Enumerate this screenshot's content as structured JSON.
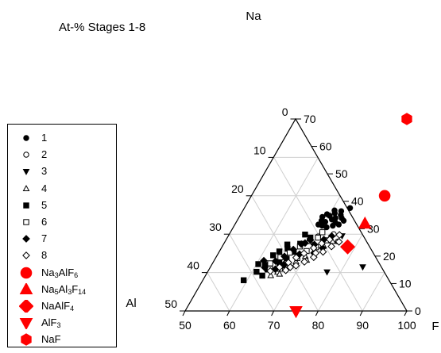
{
  "chart_data": {
    "type": "scatter",
    "subtype": "ternary",
    "title": "At-% Stages 1-8",
    "axes": {
      "top": "Na",
      "left": "Al",
      "right": "F",
      "bottom_ticks": [
        "50",
        "60",
        "70",
        "80",
        "90",
        "100"
      ],
      "left_ticks": [
        "0",
        "10",
        "20",
        "30",
        "40",
        "50"
      ],
      "right_ticks": [
        "0",
        "10",
        "20",
        "30",
        "40",
        "50",
        "60",
        "70"
      ],
      "ranges": {
        "F": [
          50,
          100
        ],
        "Na": [
          0,
          50
        ],
        "Al": [
          0,
          50
        ]
      },
      "grid": true
    },
    "legend_position": "left",
    "series": [
      {
        "name": "1",
        "marker": "circle-filled",
        "points": [
          [
            68.7,
            24.5
          ],
          [
            69.4,
            25.2
          ],
          [
            70.2,
            24.8
          ],
          [
            71.0,
            25.5
          ],
          [
            71.8,
            24.2
          ],
          [
            72.6,
            25.0
          ],
          [
            69.0,
            23.5
          ],
          [
            70.0,
            23.2
          ],
          [
            71.2,
            23.8
          ],
          [
            72.4,
            23.0
          ],
          [
            73.2,
            24.2
          ],
          [
            70.6,
            26.2
          ],
          [
            72.2,
            26.0
          ],
          [
            73.8,
            26.8
          ],
          [
            69.8,
            22.2
          ],
          [
            71.0,
            21.8
          ],
          [
            72.2,
            22.2
          ],
          [
            74.0,
            23.5
          ],
          [
            68.8,
            22.5
          ],
          [
            73.4,
            22.5
          ]
        ]
      },
      {
        "name": "2",
        "marker": "circle-open",
        "points": [
          [
            70.3,
            19.4
          ],
          [
            73.5,
            20.0
          ],
          [
            75.4,
            18.1
          ]
        ]
      },
      {
        "name": "3",
        "marker": "triangle-down-filled",
        "points": [
          [
            76.9,
            10.2
          ],
          [
            84.3,
            11.5
          ],
          [
            75.6,
            19.6
          ]
        ]
      },
      {
        "name": "4",
        "marker": "triangle-up-open",
        "points": [
          [
            64.7,
            9.2
          ],
          [
            65.8,
            10.1
          ],
          [
            67.2,
            11.5
          ],
          [
            68.6,
            12.8
          ],
          [
            70.0,
            14.2
          ],
          [
            71.4,
            15.5
          ],
          [
            72.8,
            16.9
          ],
          [
            74.2,
            18.1
          ],
          [
            66.5,
            9.6
          ],
          [
            70.8,
            13.2
          ]
        ]
      },
      {
        "name": "5",
        "marker": "square-filled",
        "points": [
          [
            59.2,
            8.0
          ],
          [
            61.0,
            10.2
          ],
          [
            62.0,
            12.0
          ],
          [
            62.6,
            14.5
          ],
          [
            63.5,
            15.5
          ],
          [
            64.4,
            17.3
          ],
          [
            63.2,
            10.8
          ],
          [
            65.0,
            12.5
          ],
          [
            66.1,
            13.6
          ],
          [
            66.8,
            15.4
          ],
          [
            67.2,
            17.5
          ],
          [
            68.7,
            19.1
          ],
          [
            60.4,
            12.2
          ],
          [
            62.8,
            9.2
          ],
          [
            65.0,
            16.2
          ],
          [
            67.1,
            19.9
          ]
        ]
      },
      {
        "name": "6",
        "marker": "square-open",
        "points": [
          [
            63.0,
            12.4
          ],
          [
            64.5,
            14.0
          ],
          [
            66.0,
            15.2
          ],
          [
            67.5,
            16.8
          ],
          [
            69.0,
            18.2
          ],
          [
            70.4,
            19.1
          ],
          [
            66.8,
            12.4
          ],
          [
            68.4,
            13.8
          ],
          [
            69.6,
            15.6
          ],
          [
            71.2,
            16.6
          ],
          [
            72.6,
            18.4
          ],
          [
            63.6,
            11.0
          ],
          [
            65.9,
            11.0
          ],
          [
            70.7,
            20.5
          ]
        ]
      },
      {
        "name": "7",
        "marker": "diamond-filled",
        "points": [
          [
            62.3,
            11.3
          ],
          [
            63.9,
            13.0
          ],
          [
            65.3,
            14.2
          ],
          [
            66.4,
            16.0
          ],
          [
            67.5,
            17.4
          ],
          [
            69.0,
            18.5
          ],
          [
            70.5,
            17.3
          ],
          [
            72.0,
            18.6
          ],
          [
            73.3,
            19.5
          ],
          [
            61.2,
            13.1
          ],
          [
            64.9,
            10.9
          ],
          [
            66.2,
            12.0
          ],
          [
            68.4,
            14.8
          ],
          [
            68.2,
            17.7
          ],
          [
            71.5,
            15.1
          ],
          [
            72.8,
            16.4
          ]
        ]
      },
      {
        "name": "8",
        "marker": "diamond-open",
        "points": [
          [
            64.0,
            10.4
          ],
          [
            65.6,
            11.4
          ],
          [
            67.0,
            12.6
          ],
          [
            68.1,
            13.9
          ],
          [
            69.3,
            15.0
          ],
          [
            70.8,
            16.4
          ],
          [
            72.0,
            17.6
          ],
          [
            73.3,
            18.6
          ],
          [
            67.4,
            10.6
          ],
          [
            69.1,
            11.8
          ],
          [
            70.5,
            12.8
          ],
          [
            72.0,
            14.0
          ],
          [
            73.4,
            15.4
          ],
          [
            74.6,
            16.8
          ],
          [
            75.7,
            18.0
          ],
          [
            68.0,
            11.4
          ],
          [
            71.9,
            15.1
          ],
          [
            74.9,
            19.8
          ]
        ]
      },
      {
        "name": "Na<sub>3</sub>AlF<sub>6</sub>",
        "marker": "circle-red",
        "points": [
          [
            80.0,
            30.0
          ]
        ]
      },
      {
        "name": "Na<sub>5</sub>Al<sub>3</sub>F<sub>14</sub>",
        "marker": "triangle-up-red",
        "points": [
          [
            79.2,
            22.7
          ]
        ]
      },
      {
        "name": "NaAlF<sub>4</sub>",
        "marker": "diamond-red",
        "points": [
          [
            78.3,
            16.7
          ]
        ]
      },
      {
        "name": "AlF<sub>3</sub>",
        "marker": "triangle-down-red",
        "points": [
          [
            75.0,
            0.0
          ]
        ]
      },
      {
        "name": "NaF",
        "marker": "hexagon-red",
        "points": [
          [
            75.0,
            50.0
          ]
        ]
      }
    ]
  }
}
